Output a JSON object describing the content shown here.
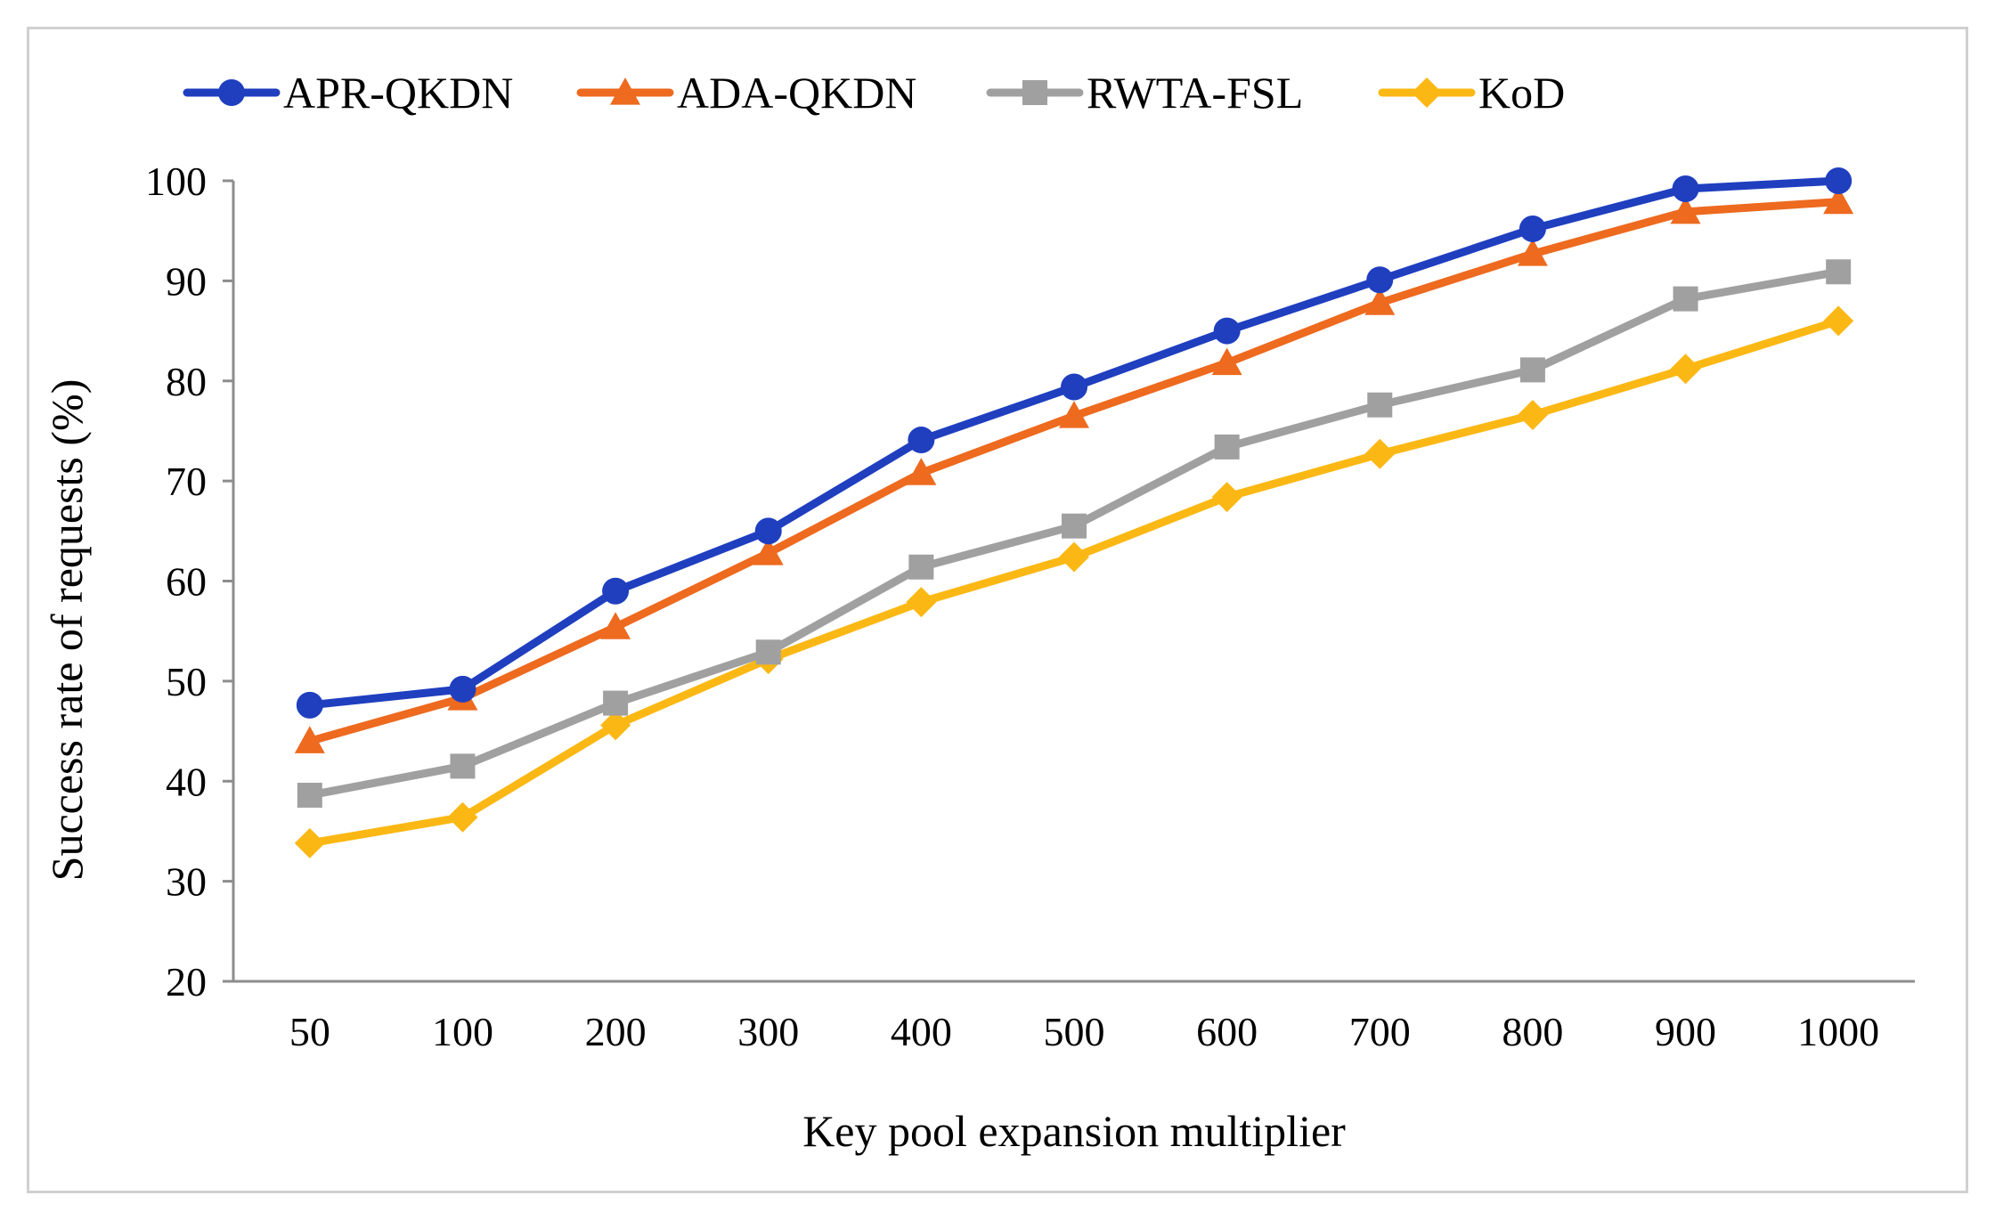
{
  "chart_data": {
    "type": "line",
    "title": "",
    "xlabel": "Key pool expansion multiplier",
    "ylabel": "Success rate of requests (%)",
    "categories": [
      "50",
      "100",
      "200",
      "300",
      "400",
      "500",
      "600",
      "700",
      "800",
      "900",
      "1000"
    ],
    "ylim": [
      20,
      100
    ],
    "yticks": [
      "20",
      "30",
      "40",
      "50",
      "60",
      "70",
      "80",
      "90",
      "100"
    ],
    "grid": false,
    "legend_position": "top",
    "series": [
      {
        "name": "APR-QKDN",
        "color": "#1f3fbf",
        "marker": "circle",
        "values": [
          47.6,
          49.2,
          59.0,
          65.0,
          74.1,
          79.4,
          85.0,
          90.1,
          95.2,
          99.2,
          100.0
        ]
      },
      {
        "name": "ADA-QKDN",
        "color": "#ed6a1f",
        "marker": "triangle",
        "values": [
          44.0,
          48.3,
          55.4,
          62.8,
          70.8,
          76.5,
          81.8,
          87.8,
          92.7,
          96.9,
          97.9
        ]
      },
      {
        "name": "RWTA-FSL",
        "color": "#a0a0a0",
        "marker": "square",
        "values": [
          38.6,
          41.5,
          47.8,
          52.9,
          61.4,
          65.5,
          73.4,
          77.6,
          81.1,
          88.2,
          90.9
        ]
      },
      {
        "name": "KoD",
        "color": "#fbb814",
        "marker": "diamond",
        "values": [
          33.8,
          36.4,
          45.6,
          52.2,
          57.9,
          62.4,
          68.4,
          72.7,
          76.6,
          81.2,
          86.0
        ]
      }
    ]
  }
}
